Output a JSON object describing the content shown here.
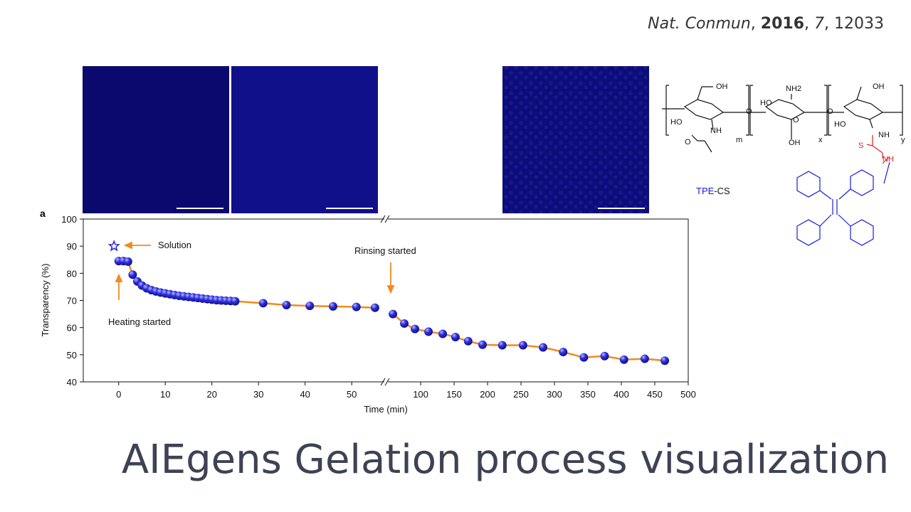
{
  "citation": [
    "Nat. Conmun",
    ", ",
    "2016",
    ", ",
    "7",
    ", 12033"
  ],
  "title": "AIEgens Gelation process visualization",
  "structure": {
    "labels": [
      "OH",
      "HO",
      "NH",
      "O",
      "m",
      "NH2",
      "HO",
      "O",
      "OH",
      "x",
      "OH",
      "HO",
      "NH",
      "y",
      "S",
      "NH",
      "O",
      "O"
    ],
    "caption_tpe": "TPE",
    "caption_cs": "-CS"
  },
  "chart_data": {
    "type": "line",
    "panel_label": "a",
    "xlabel": "Time (min)",
    "ylabel": "Transparency (%)",
    "line_color": "#f28a1e",
    "marker_color": "#2828d2",
    "ylim": [
      40,
      100
    ],
    "yticks": [
      40,
      50,
      60,
      70,
      80,
      90,
      100
    ],
    "segments": [
      {
        "xlim": [
          -7.6,
          57
        ],
        "xticks": [
          0,
          10,
          20,
          30,
          40,
          50
        ]
      },
      {
        "xlim": [
          51,
          500
        ],
        "xticks": [
          100,
          150,
          200,
          250,
          300,
          350,
          400,
          450,
          500
        ]
      }
    ],
    "x": [
      0,
      1,
      2,
      3,
      4,
      5,
      6,
      7,
      8,
      9,
      10,
      11,
      12,
      13,
      14,
      15,
      16,
      17,
      18,
      19,
      20,
      21,
      22,
      23,
      24,
      25,
      31,
      36,
      41,
      46,
      51,
      55,
      58.5,
      75.5,
      91.5,
      111.7,
      133,
      152,
      171,
      192.5,
      222,
      253,
      283,
      313,
      344,
      375,
      404,
      435,
      465
    ],
    "values": [
      84.5,
      84.5,
      84.3,
      79.5,
      77,
      75.5,
      74.5,
      73.8,
      73.3,
      72.9,
      72.6,
      72.3,
      72,
      71.7,
      71.5,
      71.3,
      71.1,
      70.9,
      70.7,
      70.5,
      70.3,
      70.1,
      70,
      69.9,
      69.8,
      69.7,
      69,
      68.3,
      68,
      67.8,
      67.6,
      67.3,
      65,
      61.5,
      59.5,
      58.5,
      57.7,
      56.5,
      55,
      53.7,
      53.5,
      53.5,
      52.7,
      51,
      49,
      49.5,
      48.2,
      48.5,
      47.8
    ],
    "solution_point": {
      "x": -1,
      "value": 90
    },
    "annotations": {
      "solution": "Solution",
      "heating": "Heating started",
      "rinsing": "Rinsing started"
    }
  }
}
